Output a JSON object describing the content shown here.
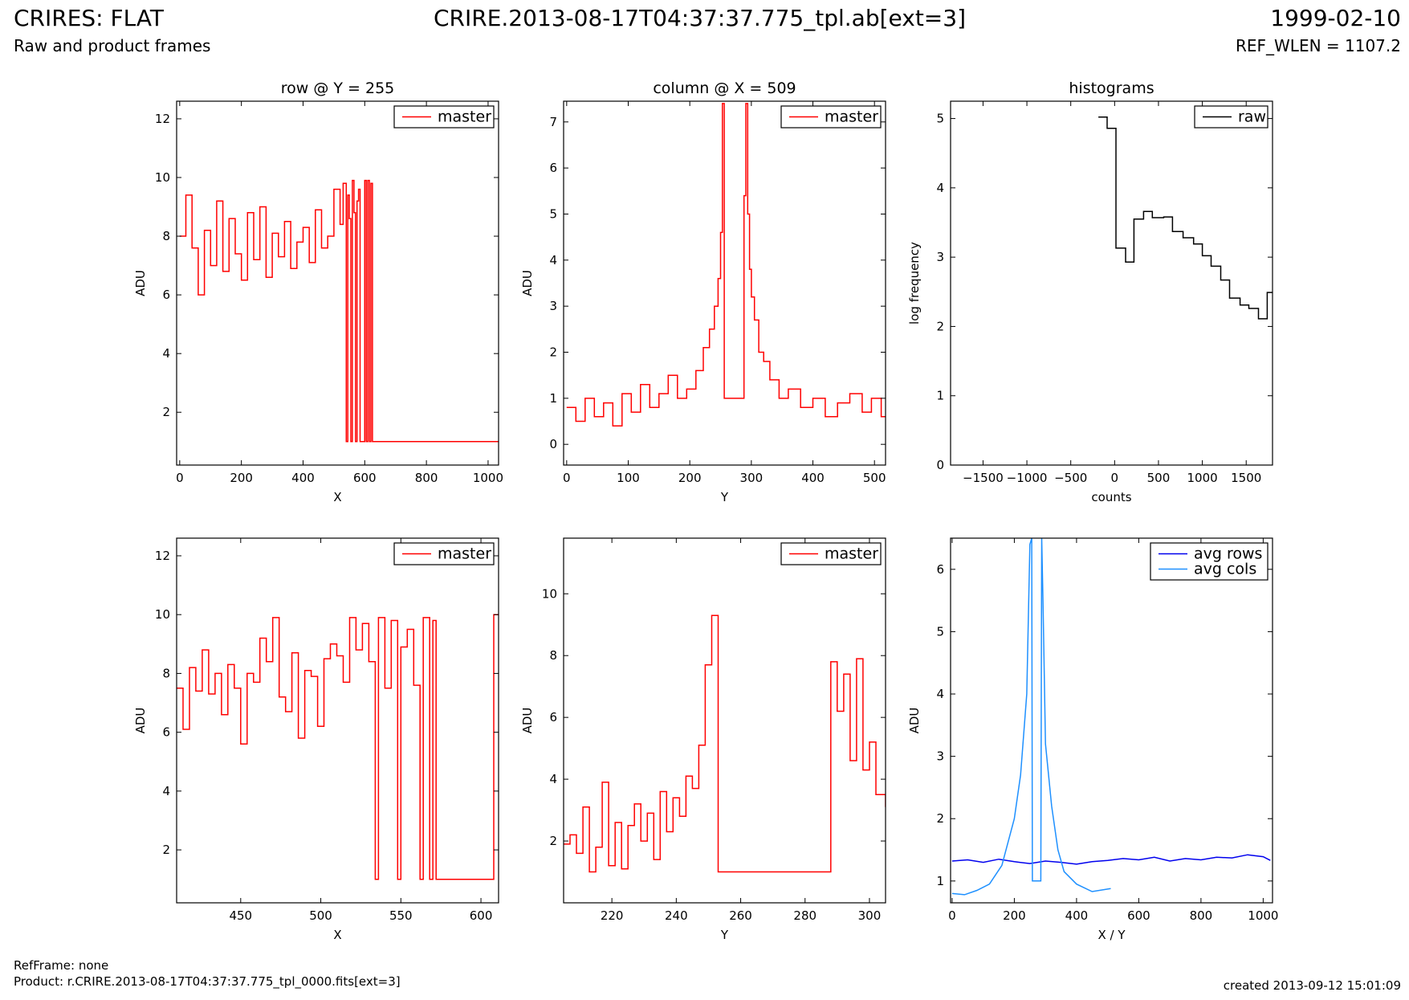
{
  "header": {
    "title_left": "CRIRES: FLAT",
    "title_center": "CRIRE.2013-08-17T04:37:37.775_tpl.ab[ext=3]",
    "title_right": "1999-02-10",
    "subtitle_left": "Raw and product frames",
    "subtitle_right": "REF_WLEN = 1107.2"
  },
  "footer": {
    "refframe": "RefFrame: none",
    "product": "Product: r.CRIRE.2013-08-17T04:37:37.775_tpl_0000.fits[ext=3]",
    "created": "created 2013-09-12 15:01:09"
  },
  "colors": {
    "master": "#ff0000",
    "raw": "#000000",
    "avg_rows": "#0000ee",
    "avg_cols": "#1e90ff"
  },
  "chart_data": [
    {
      "id": "row",
      "type": "line",
      "title": "row @ Y = 255",
      "xlabel": "X",
      "ylabel": "ADU",
      "xlim": [
        -10,
        1034
      ],
      "ylim": [
        0.2,
        12.6
      ],
      "xticks": [
        0,
        200,
        400,
        600,
        800,
        1000
      ],
      "yticks": [
        2,
        4,
        6,
        8,
        10,
        12
      ],
      "legend": "top-right",
      "series": [
        {
          "name": "master",
          "color": "#ff0000",
          "step": true,
          "x": [
            0,
            20,
            40,
            60,
            80,
            100,
            120,
            140,
            160,
            180,
            200,
            220,
            240,
            260,
            280,
            300,
            320,
            340,
            360,
            380,
            400,
            420,
            440,
            460,
            480,
            500,
            520,
            530,
            540,
            545,
            550,
            555,
            560,
            565,
            570,
            575,
            580,
            585,
            590,
            595,
            600,
            605,
            610,
            615,
            620,
            625,
            630,
            700,
            800,
            900,
            1024
          ],
          "y": [
            8.0,
            9.4,
            7.6,
            6.0,
            8.2,
            7.0,
            9.2,
            6.8,
            8.6,
            7.4,
            6.5,
            8.8,
            7.2,
            9.0,
            6.6,
            8.1,
            7.3,
            8.5,
            6.9,
            7.8,
            8.3,
            7.1,
            8.9,
            7.6,
            8.0,
            9.6,
            8.4,
            9.8,
            1.0,
            9.4,
            8.6,
            1.0,
            9.9,
            8.8,
            1.0,
            9.2,
            9.6,
            1.0,
            1.0,
            1.0,
            9.9,
            1.0,
            9.9,
            1.0,
            9.8,
            1.0,
            1.0,
            1.0,
            1.0,
            1.0,
            1.0
          ]
        }
      ]
    },
    {
      "id": "column",
      "type": "line",
      "title": "column @ X = 509",
      "xlabel": "Y",
      "ylabel": "ADU",
      "xlim": [
        -5,
        518
      ],
      "ylim": [
        -0.45,
        7.45
      ],
      "xticks": [
        0,
        100,
        200,
        300,
        400,
        500
      ],
      "yticks": [
        0,
        1,
        2,
        3,
        4,
        5,
        6,
        7
      ],
      "legend": "top-right",
      "series": [
        {
          "name": "master",
          "color": "#ff0000",
          "step": true,
          "x": [
            0,
            15,
            30,
            45,
            60,
            75,
            90,
            105,
            120,
            135,
            150,
            165,
            180,
            195,
            210,
            222,
            232,
            240,
            246,
            250,
            253,
            256,
            288,
            291,
            294,
            297,
            300,
            305,
            312,
            320,
            330,
            345,
            360,
            380,
            400,
            420,
            440,
            460,
            480,
            495,
            511
          ],
          "y": [
            0.8,
            0.5,
            1.0,
            0.6,
            0.9,
            0.4,
            1.1,
            0.7,
            1.3,
            0.8,
            1.1,
            1.5,
            1.0,
            1.2,
            1.6,
            2.1,
            2.5,
            3.0,
            3.6,
            4.6,
            7.4,
            1.0,
            5.4,
            7.4,
            5.0,
            3.8,
            3.2,
            2.7,
            2.0,
            1.8,
            1.4,
            1.0,
            1.2,
            0.8,
            1.0,
            0.6,
            0.9,
            1.1,
            0.7,
            1.0,
            0.6
          ]
        }
      ]
    },
    {
      "id": "hist",
      "type": "line",
      "title": "histograms",
      "xlabel": "counts",
      "ylabel": "log frequency",
      "xlim": [
        -1870,
        1800
      ],
      "ylim": [
        0,
        5.25
      ],
      "xticks": [
        -1500,
        -1000,
        -500,
        0,
        500,
        1000,
        1500
      ],
      "yticks": [
        0,
        1,
        2,
        3,
        4,
        5
      ],
      "legend": "top-right",
      "series": [
        {
          "name": "raw",
          "color": "#000000",
          "step": true,
          "x": [
            -185,
            -85,
            15,
            125,
            220,
            330,
            430,
            560,
            660,
            780,
            900,
            1000,
            1100,
            1210,
            1310,
            1430,
            1530,
            1640,
            1740
          ],
          "y": [
            5.02,
            4.86,
            3.13,
            2.93,
            3.55,
            3.66,
            3.57,
            3.58,
            3.37,
            3.28,
            3.19,
            3.02,
            2.87,
            2.67,
            2.41,
            2.31,
            2.26,
            2.11,
            2.49
          ]
        }
      ]
    },
    {
      "id": "row_zoom",
      "type": "line",
      "title": "",
      "xlabel": "X",
      "ylabel": "ADU",
      "xlim": [
        410,
        611
      ],
      "ylim": [
        0.2,
        12.6
      ],
      "xticks": [
        450,
        500,
        550,
        600
      ],
      "yticks": [
        2,
        4,
        6,
        8,
        10,
        12
      ],
      "legend": "top-right",
      "series": [
        {
          "name": "master",
          "color": "#ff0000",
          "step": true,
          "x": [
            410,
            414,
            418,
            422,
            426,
            430,
            434,
            438,
            442,
            446,
            450,
            454,
            458,
            462,
            466,
            470,
            474,
            478,
            482,
            486,
            490,
            494,
            498,
            502,
            506,
            510,
            514,
            518,
            522,
            526,
            530,
            534,
            536,
            540,
            544,
            548,
            550,
            554,
            558,
            562,
            564,
            568,
            570,
            572,
            574,
            600,
            608,
            610
          ],
          "y": [
            7.5,
            6.1,
            8.2,
            7.4,
            8.8,
            7.3,
            8.0,
            6.6,
            8.3,
            7.5,
            5.6,
            8.0,
            7.7,
            9.2,
            8.4,
            9.9,
            7.2,
            6.7,
            8.7,
            5.8,
            8.1,
            7.9,
            6.2,
            8.5,
            9.0,
            8.6,
            7.7,
            9.9,
            8.8,
            9.7,
            8.4,
            1.0,
            9.9,
            7.5,
            9.8,
            1.0,
            8.9,
            9.5,
            7.6,
            1.0,
            9.9,
            1.0,
            9.8,
            1.0,
            1.0,
            1.0,
            10.0,
            10.0
          ]
        }
      ]
    },
    {
      "id": "column_zoom",
      "type": "line",
      "title": "",
      "xlabel": "Y",
      "ylabel": "ADU",
      "xlim": [
        205,
        305
      ],
      "ylim": [
        0.0,
        11.8
      ],
      "xticks": [
        220,
        240,
        260,
        280,
        300
      ],
      "yticks": [
        2,
        4,
        6,
        8,
        10
      ],
      "legend": "top-right",
      "series": [
        {
          "name": "master",
          "color": "#ff0000",
          "step": true,
          "x": [
            205,
            207,
            209,
            211,
            213,
            215,
            217,
            219,
            221,
            223,
            225,
            227,
            229,
            231,
            233,
            235,
            237,
            239,
            241,
            243,
            245,
            247,
            249,
            251,
            253,
            255,
            288,
            290,
            292,
            294,
            296,
            298,
            300,
            302,
            305
          ],
          "y": [
            1.9,
            2.2,
            1.6,
            3.1,
            1.0,
            1.8,
            3.9,
            1.2,
            2.6,
            1.1,
            2.5,
            3.2,
            2.0,
            2.9,
            1.4,
            3.6,
            2.3,
            3.4,
            2.8,
            4.1,
            3.7,
            5.1,
            7.7,
            9.3,
            1.0,
            1.0,
            7.8,
            6.2,
            7.4,
            4.6,
            7.9,
            4.3,
            5.2,
            3.5,
            3.1
          ]
        }
      ]
    },
    {
      "id": "averages",
      "type": "line",
      "title": "",
      "xlabel": "X / Y",
      "ylabel": "ADU",
      "xlim": [
        -5,
        1030
      ],
      "ylim": [
        0.65,
        6.5
      ],
      "xticks": [
        0,
        200,
        400,
        600,
        800,
        1000
      ],
      "yticks": [
        1,
        2,
        3,
        4,
        5,
        6
      ],
      "legend": "top-right",
      "series": [
        {
          "name": "avg rows",
          "color": "#0000ee",
          "step": false,
          "x": [
            0,
            50,
            100,
            150,
            200,
            250,
            300,
            350,
            400,
            450,
            500,
            550,
            600,
            650,
            700,
            750,
            800,
            850,
            900,
            950,
            1000,
            1023
          ],
          "y": [
            1.32,
            1.34,
            1.3,
            1.35,
            1.31,
            1.28,
            1.32,
            1.3,
            1.27,
            1.31,
            1.33,
            1.36,
            1.34,
            1.38,
            1.32,
            1.36,
            1.34,
            1.38,
            1.37,
            1.42,
            1.39,
            1.33
          ]
        },
        {
          "name": "avg cols",
          "color": "#1e90ff",
          "step": false,
          "x": [
            0,
            40,
            80,
            120,
            160,
            200,
            220,
            240,
            250,
            256,
            258,
            285,
            288,
            292,
            300,
            320,
            340,
            360,
            400,
            450,
            510
          ],
          "y": [
            0.8,
            0.78,
            0.85,
            0.95,
            1.25,
            2.0,
            2.7,
            4.0,
            6.4,
            6.5,
            1.0,
            1.0,
            6.5,
            5.5,
            3.2,
            2.2,
            1.5,
            1.15,
            0.95,
            0.83,
            0.88
          ]
        }
      ]
    }
  ]
}
